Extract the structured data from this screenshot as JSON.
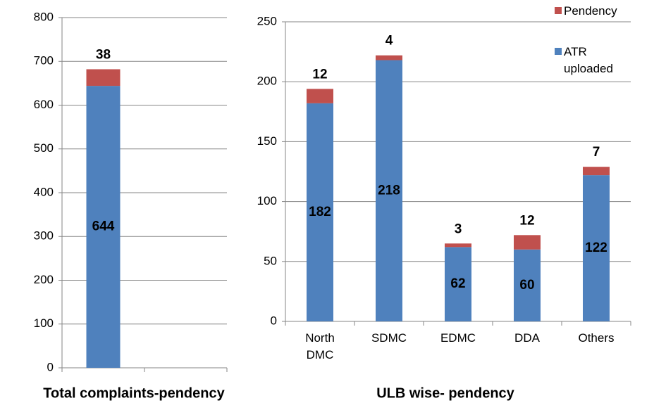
{
  "chart_data": [
    {
      "type": "stacked_bar",
      "title": "Total complaints-pendency",
      "categories": [
        null,
        null
      ],
      "series": [
        {
          "color": "#4f81bd",
          "values": [
            644,
            null
          ]
        },
        {
          "color": "#c0504d",
          "values": [
            38,
            null
          ]
        }
      ],
      "ylim": [
        0,
        800
      ],
      "yticks": [
        0,
        100,
        200,
        300,
        400,
        500,
        600,
        700,
        800
      ],
      "grid": true
    },
    {
      "type": "stacked_bar",
      "title": "ULB wise- pendency",
      "categories": [
        "North DMC",
        "SDMC",
        "EDMC",
        "DDA",
        "Others"
      ],
      "series": [
        {
          "name": "ATR uploaded",
          "color": "#4f81bd",
          "values": [
            182,
            218,
            62,
            60,
            122
          ]
        },
        {
          "name": "Pendency",
          "color": "#c0504d",
          "values": [
            12,
            4,
            3,
            12,
            7
          ]
        }
      ],
      "ylim": [
        0,
        250
      ],
      "yticks": [
        0,
        50,
        100,
        150,
        200,
        250
      ],
      "grid": true,
      "legend": "top-right"
    }
  ]
}
